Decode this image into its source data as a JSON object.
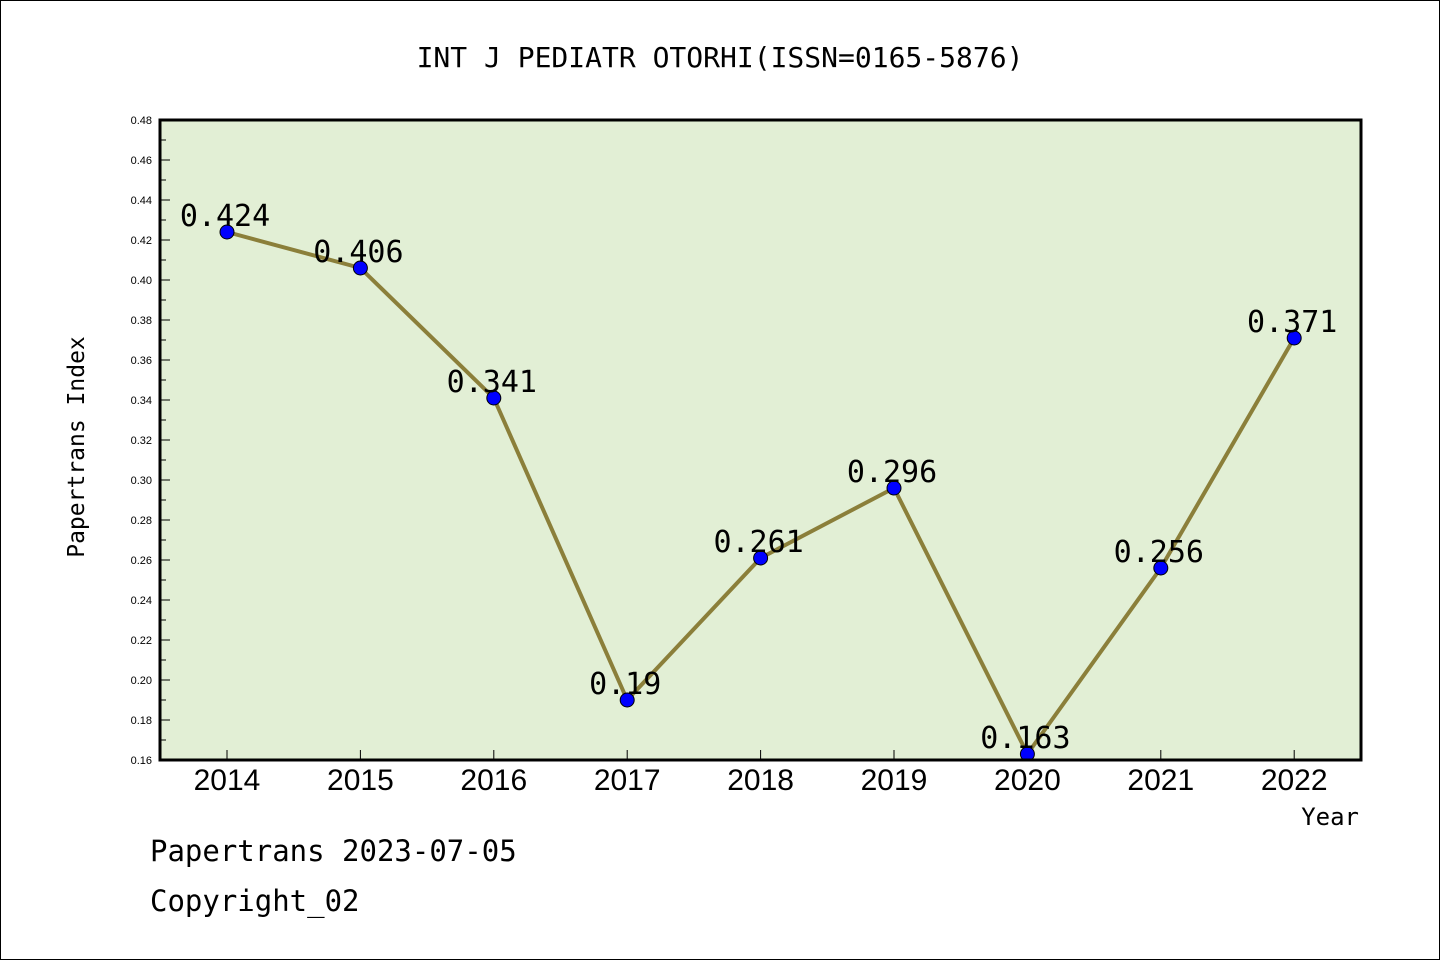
{
  "chart_data": {
    "type": "line",
    "title": "INT J PEDIATR OTORHI(ISSN=0165-5876)",
    "xlabel": "Year",
    "ylabel": "Papertrans Index",
    "categories": [
      "2014",
      "2015",
      "2016",
      "2017",
      "2018",
      "2019",
      "2020",
      "2021",
      "2022"
    ],
    "series": [
      {
        "values": [
          0.424,
          0.406,
          0.341,
          0.19,
          0.261,
          0.296,
          0.163,
          0.256,
          0.371
        ]
      }
    ],
    "data_labels": [
      "0.424",
      "0.406",
      "0.341",
      "0.19",
      "0.261",
      "0.296",
      "0.163",
      "0.256",
      "0.371"
    ],
    "ylim": [
      0.16,
      0.48
    ],
    "yticks": [
      "0.16",
      "0.18",
      "0.20",
      "0.22",
      "0.24",
      "0.26",
      "0.28",
      "0.30",
      "0.32",
      "0.34",
      "0.36",
      "0.38",
      "0.40",
      "0.42",
      "0.44",
      "0.46",
      "0.48"
    ],
    "grid": false,
    "colors": {
      "plot_background": "#e2efd5",
      "line": "#8b7f3a",
      "marker": "#0000ff"
    }
  },
  "footer": {
    "date_text": "Papertrans 2023-07-05",
    "copyright_text": "Copyright_02"
  }
}
